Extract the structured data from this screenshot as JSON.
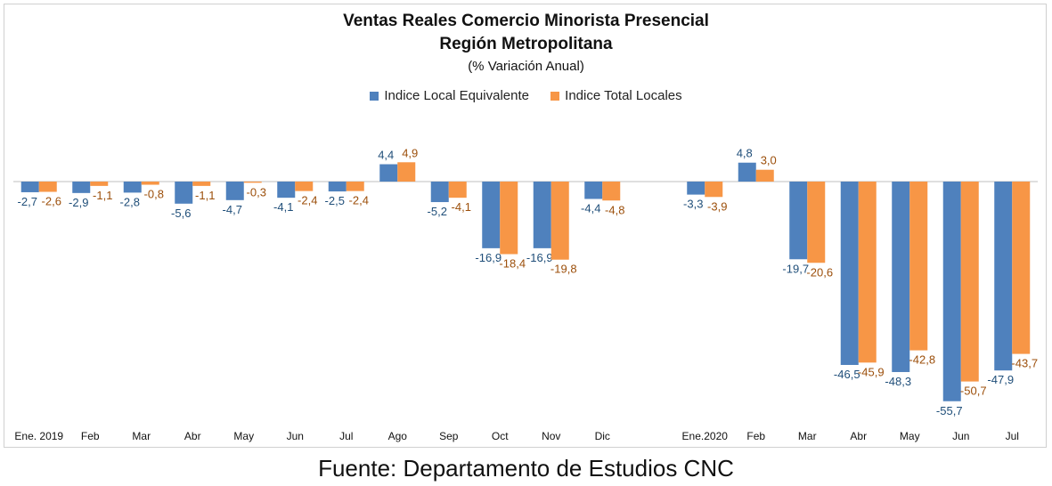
{
  "chart_data": {
    "type": "bar",
    "title": "Ventas Reales Comercio Minorista Presencial",
    "subtitle": "Región Metropolitana",
    "units_note": "(% Variación Anual)",
    "categories": [
      "Ene. 2019",
      "Feb",
      "Mar",
      "Abr",
      "May",
      "Jun",
      "Jul",
      "Ago",
      "Sep",
      "Oct",
      "Nov",
      "Dic",
      "",
      "Ene.2020",
      "Feb",
      "Mar",
      "Abr",
      "May",
      "Jun",
      "Jul"
    ],
    "series": [
      {
        "name": "Indice Local Equivalente",
        "color": "#4F81BD",
        "values": [
          -2.7,
          -2.9,
          -2.8,
          -5.6,
          -4.7,
          -4.1,
          -2.5,
          4.4,
          -5.2,
          -16.9,
          -16.9,
          -4.4,
          null,
          -3.3,
          4.8,
          -19.7,
          -46.5,
          -48.3,
          -55.7,
          -47.9
        ],
        "labels": [
          "-2,7",
          "-2,9",
          "-2,8",
          "-5,6",
          "-4,7",
          "-4,1",
          "-2,5",
          "4,4",
          "-5,2",
          "-16,9",
          "-16,9",
          "-4,4",
          "",
          "-3,3",
          "4,8",
          "-19,7",
          "-46,5",
          "-48,3",
          "-55,7",
          "-47,9"
        ]
      },
      {
        "name": "Indice Total Locales",
        "color": "#F79646",
        "values": [
          -2.6,
          -1.1,
          -0.8,
          -1.1,
          -0.3,
          -2.4,
          -2.4,
          4.9,
          -4.1,
          -18.4,
          -19.8,
          -4.8,
          null,
          -3.9,
          3.0,
          -20.6,
          -45.9,
          -42.8,
          -50.7,
          -43.7
        ],
        "labels": [
          "-2,6",
          "-1,1",
          "-0,8",
          "-1,1",
          "-0,3",
          "-2,4",
          "-2,4",
          "4,9",
          "-4,1",
          "-18,4",
          "-19,8",
          "-4,8",
          "",
          "-3,9",
          "3,0",
          "-20,6",
          "-45,9",
          "-42,8",
          "-50,7",
          "-43,7"
        ]
      }
    ],
    "ylim": [
      -60,
      5
    ],
    "grid": false,
    "legend_position": "top"
  },
  "source": "Fuente: Departamento de Estudios CNC"
}
